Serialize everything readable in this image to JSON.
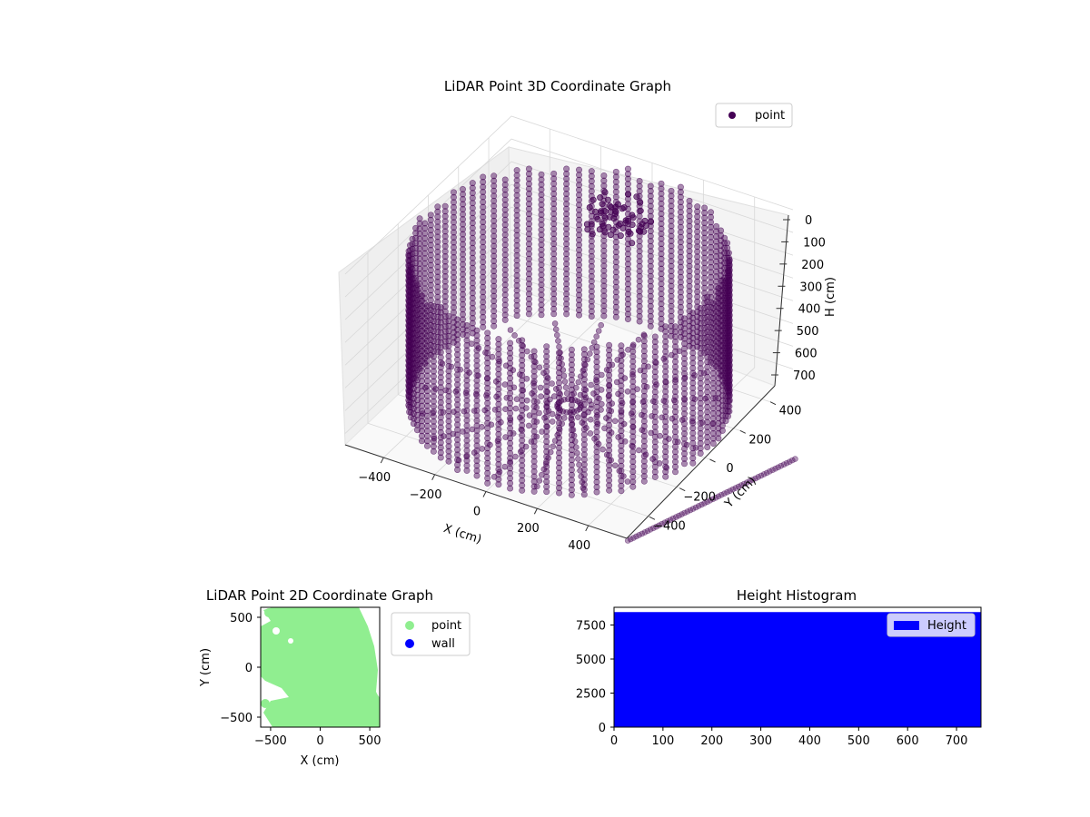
{
  "figure": {
    "background": "#ffffff"
  },
  "chart_data": [
    {
      "type": "scatter",
      "projection": "3d",
      "title": "LiDAR Point 3D Coordinate Graph",
      "xlabel": "X (cm)",
      "ylabel": "Y (cm)",
      "zlabel": "H (cm)",
      "xticks": [
        "−400",
        "−200",
        "0",
        "200",
        "400"
      ],
      "yticks": [
        "400",
        "200",
        "0",
        "−200",
        "−400"
      ],
      "zticks": [
        "0",
        "100",
        "200",
        "300",
        "400",
        "500",
        "600",
        "700"
      ],
      "xlim": [
        -550,
        550
      ],
      "ylim": [
        -550,
        550
      ],
      "zlim": [
        0,
        750
      ],
      "z_inverted": true,
      "grid": true,
      "legend": {
        "location": "upper right",
        "entries": [
          {
            "label": "point",
            "color": "#440154"
          }
        ]
      },
      "series": [
        {
          "name": "point",
          "color": "#440154",
          "alpha": 0.5,
          "description_points": "dense ring of vertical point columns, radius about 550 cm, heights 0 to 720 cm"
        }
      ]
    },
    {
      "type": "scatter",
      "title": "LiDAR Point 2D Coordinate Graph",
      "xlabel": "X (cm)",
      "ylabel": "Y (cm)",
      "xticks": [
        "−500",
        "0",
        "500"
      ],
      "yticks": [
        "500",
        "0",
        "−500"
      ],
      "xlim": [
        -600,
        600
      ],
      "ylim": [
        -600,
        600
      ],
      "legend": {
        "location": "outside right",
        "entries": [
          {
            "label": "point",
            "color": "#90ee90"
          },
          {
            "label": "wall",
            "color": "#0000ff"
          }
        ]
      },
      "series": [
        {
          "name": "point",
          "color": "#90ee90"
        },
        {
          "name": "wall",
          "color": "#0000ff"
        }
      ]
    },
    {
      "type": "bar",
      "title": "Height Histogram",
      "xticks": [
        "0",
        "100",
        "200",
        "300",
        "400",
        "500",
        "600",
        "700"
      ],
      "yticks": [
        "0",
        "2500",
        "5000",
        "7500"
      ],
      "xlim": [
        0,
        750
      ],
      "ylim": [
        0,
        8800
      ],
      "bar_color": "#0000ff",
      "bar_value": 8450,
      "bar_range": [
        0,
        750
      ],
      "legend": {
        "location": "upper right",
        "entries": [
          {
            "label": "Height",
            "color": "#0000ff"
          }
        ]
      }
    }
  ]
}
